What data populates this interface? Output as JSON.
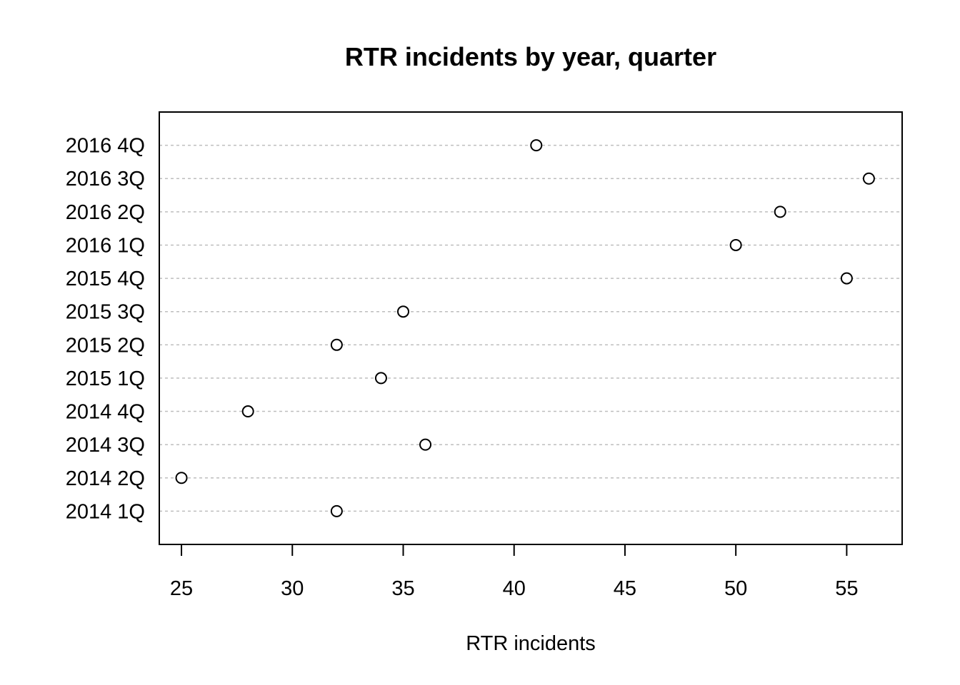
{
  "chart_data": {
    "type": "scatter",
    "variant": "dotchart",
    "title": "RTR incidents by year, quarter",
    "xlabel": "RTR incidents",
    "ylabel": "",
    "xlim": [
      24,
      57.5
    ],
    "x_ticks": [
      25,
      30,
      35,
      40,
      45,
      50,
      55
    ],
    "grid": "horizontal dotted",
    "categories": [
      "2014 1Q",
      "2014 2Q",
      "2014 3Q",
      "2014 4Q",
      "2015 1Q",
      "2015 2Q",
      "2015 3Q",
      "2015 4Q",
      "2016 1Q",
      "2016 2Q",
      "2016 3Q",
      "2016 4Q"
    ],
    "values": [
      32,
      25,
      36,
      28,
      34,
      32,
      35,
      55,
      50,
      52,
      56,
      41
    ]
  }
}
